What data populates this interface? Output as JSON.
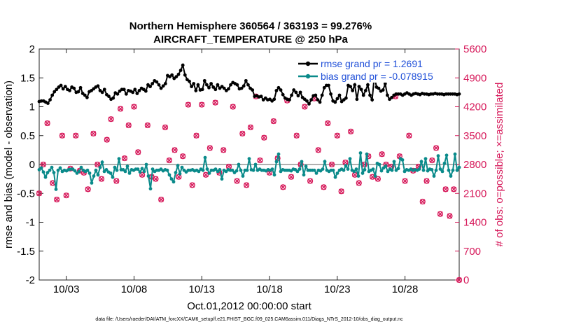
{
  "chart_data": {
    "type": "line",
    "title_line1": "Northern Hemisphere 360564 / 363193 = 99.276%",
    "title_line2": "AIRCRAFT_TEMPERATURE @ 250 hPa",
    "xlabel": "Oct.01,2012 00:00:00 start",
    "ylabel_left": "rmse and bias (model - observation)",
    "ylabel_right": "# of obs: o=possible; ×=assimilated",
    "footer": "data file: /Users/raeder/DAI/ATM_forcXX/CAM6_setup/f.e21.FHIST_BGC.f09_025.CAM6assim.011/Diags_NTrS_2012-10/obs_diag_output.nc",
    "x_range_days": [
      1.0,
      32.0
    ],
    "ylim_left": [
      -2,
      2
    ],
    "ylim_right": [
      0,
      5600
    ],
    "x_tick_days": [
      3,
      8,
      13,
      18,
      23,
      28
    ],
    "x_tick_labels": [
      "10/03",
      "10/08",
      "10/13",
      "10/18",
      "10/23",
      "10/28"
    ],
    "y_ticks_left": [
      "2",
      "1.5",
      "1",
      "0.5",
      "0",
      "-0.5",
      "-1",
      "-1.5",
      "-2"
    ],
    "y_ticks_right": [
      "5600",
      "4900",
      "4200",
      "3500",
      "2800",
      "2100",
      "1400",
      "700",
      "0"
    ],
    "legend": [
      {
        "name": "rmse grand pr = 1.2691",
        "color": "#000000"
      },
      {
        "name": "bias grand pr = -0.078915",
        "color": "#008080"
      }
    ],
    "colors": {
      "rmse": "#000000",
      "bias": "#0a8a8a",
      "obs": "#d6195a",
      "legend_text": "#1f4fd8",
      "zero_line": "#b0b0b0"
    },
    "series": [
      {
        "name": "rmse",
        "axis": "left",
        "values": [
          1.09,
          1.1,
          1.1,
          1.08,
          1.06,
          1.12,
          1.2,
          1.26,
          1.3,
          1.34,
          1.37,
          1.31,
          1.35,
          1.3,
          1.28,
          1.34,
          1.32,
          1.25,
          1.26,
          1.33,
          1.23,
          1.2,
          1.16,
          1.26,
          1.28,
          1.31,
          1.34,
          1.36,
          1.28,
          1.25,
          1.3,
          1.21,
          1.18,
          1.13,
          1.15,
          1.24,
          1.22,
          1.27,
          1.3,
          1.3,
          1.22,
          1.28,
          1.27,
          1.25,
          1.3,
          1.23,
          1.28,
          1.32,
          1.3,
          1.27,
          1.38,
          1.35,
          1.4,
          1.45,
          1.43,
          1.38,
          1.32,
          1.36,
          1.4,
          1.54,
          1.52,
          1.55,
          1.49,
          1.52,
          1.56,
          1.63,
          1.72,
          1.55,
          1.47,
          1.44,
          1.35,
          1.4,
          1.28,
          1.38,
          1.29,
          1.3,
          1.45,
          1.38,
          1.33,
          1.4,
          1.34,
          1.3,
          1.38,
          1.32,
          1.35,
          1.32,
          1.28,
          1.31,
          1.38,
          1.42,
          1.4,
          1.38,
          1.31,
          1.32,
          1.36,
          1.45,
          1.38,
          1.32,
          1.29,
          1.18,
          1.19,
          1.17,
          1.18,
          1.12,
          1.15,
          1.12,
          1.13,
          1.1,
          1.13,
          1.28,
          1.33,
          1.29,
          1.21,
          1.15,
          1.13,
          1.12,
          1.2,
          1.29,
          1.25,
          1.19,
          1.25,
          1.16,
          1.13,
          1.1,
          1.05,
          1.12,
          1.19,
          1.2,
          1.12,
          1.08,
          1.2,
          1.33,
          1.37,
          1.37,
          1.22,
          1.1,
          1.08,
          1.14,
          1.2,
          1.09,
          1.12,
          1.15,
          1.37,
          1.35,
          1.28,
          1.38,
          1.13,
          1.35,
          1.3,
          1.2,
          1.28,
          1.38,
          1.2,
          1.12,
          1.53,
          1.34,
          1.32,
          1.27,
          1.29,
          1.4,
          1.2,
          1.13,
          1.16,
          1.2,
          1.22,
          1.22,
          1.22,
          1.2,
          1.22,
          1.24,
          1.22,
          1.2,
          1.22,
          1.23,
          1.22,
          1.21,
          1.23,
          1.22,
          1.22,
          1.21,
          1.22,
          1.22,
          1.23,
          1.22,
          1.22,
          1.22,
          1.21,
          1.22,
          1.22,
          1.22,
          1.22,
          1.22,
          1.21,
          1.22
        ]
      },
      {
        "name": "bias",
        "axis": "left",
        "values": [
          -0.09,
          -0.06,
          -0.13,
          -0.22,
          -0.14,
          -0.1,
          -0.05,
          -0.14,
          -0.43,
          -0.1,
          -0.06,
          -0.12,
          -0.1,
          -0.11,
          -0.09,
          -0.08,
          -0.08,
          -0.11,
          -0.15,
          -0.12,
          -0.05,
          -0.1,
          -0.12,
          -0.1,
          -0.15,
          -0.32,
          -0.2,
          -0.1,
          -0.18,
          -0.05,
          0.04,
          -0.12,
          -0.09,
          -0.13,
          -0.15,
          -0.22,
          -0.05,
          -0.1,
          0.1,
          -0.09,
          -0.09,
          -0.12,
          -0.03,
          -0.15,
          -0.09,
          -0.1,
          -0.08,
          -0.08,
          -0.13,
          -0.07,
          -0.12,
          0.0,
          -0.2,
          -0.42,
          -0.08,
          -0.12,
          -0.1,
          -0.1,
          -0.08,
          -0.11,
          -0.09,
          -0.1,
          -0.18,
          -0.25,
          -0.3,
          -0.14,
          -0.02,
          -0.16,
          -0.05,
          -0.1,
          -0.13,
          -0.1,
          -0.1,
          -0.09,
          -0.11,
          -0.1,
          -0.12,
          -0.08,
          -0.1,
          0.12,
          -0.08,
          -0.15,
          -0.1,
          -0.1,
          -0.08,
          -0.12,
          -0.09,
          -0.25,
          -0.1,
          -0.12,
          -0.09,
          -0.1,
          -0.1,
          -0.14,
          -0.11,
          0.0,
          -0.1,
          -0.2,
          -0.1,
          -0.1,
          0.1,
          -0.09,
          -0.1,
          0.0,
          -0.1,
          -0.08,
          -0.1,
          -0.1,
          -0.11,
          -0.09,
          -0.1,
          -0.08,
          -0.18,
          0.05,
          0.18,
          -0.12,
          -0.09,
          -0.1,
          -0.1,
          -0.1,
          -0.11,
          -0.08,
          -0.09,
          -0.12,
          -0.08,
          0.05,
          -0.18,
          -0.03,
          -0.1,
          -0.1,
          -0.1,
          -0.1,
          -0.15,
          -0.1,
          -0.11,
          -0.08,
          0.05,
          -0.1,
          -0.12,
          -0.1,
          -0.1,
          -0.22,
          -0.15,
          -0.1,
          -0.08,
          -0.1,
          -0.02,
          -0.08,
          0.1,
          -0.1,
          -0.12,
          -0.08,
          -0.2,
          0.2,
          -0.15,
          -0.09,
          0.18,
          -0.12,
          -0.1,
          -0.08,
          -0.2,
          0.02,
          0.0,
          -0.11,
          -0.06,
          -0.03,
          -0.12,
          -0.08,
          -0.1,
          0.05,
          -0.1,
          -0.07,
          0.1,
          0.08,
          -0.12,
          -0.09,
          -0.1,
          -0.08,
          -0.1,
          -0.09,
          -0.1,
          -0.08,
          0.05,
          -0.1,
          0.1,
          -0.11,
          -0.08,
          -0.09,
          -0.2,
          -0.1,
          0.15,
          -0.08,
          -0.12,
          0.02,
          0.16,
          -0.1,
          -0.2,
          -0.1,
          0.18,
          -0.1,
          -0.05
        ]
      },
      {
        "name": "obs",
        "axis": "right",
        "note": "possible (o) and assimilated (×) counts nearly coincide",
        "points": [
          [
            1.0,
            2100
          ],
          [
            1.3,
            2800
          ],
          [
            1.6,
            3800
          ],
          [
            2.0,
            2350
          ],
          [
            2.3,
            1950
          ],
          [
            2.7,
            3500
          ],
          [
            3.0,
            2050
          ],
          [
            3.3,
            2700
          ],
          [
            3.7,
            3500
          ],
          [
            4.0,
            2650
          ],
          [
            4.3,
            2600
          ],
          [
            4.6,
            2200
          ],
          [
            5.0,
            3550
          ],
          [
            5.3,
            2800
          ],
          [
            5.6,
            2450
          ],
          [
            6.0,
            3400
          ],
          [
            6.3,
            3900
          ],
          [
            6.7,
            2400
          ],
          [
            7.0,
            4150
          ],
          [
            7.3,
            2950
          ],
          [
            7.6,
            3750
          ],
          [
            8.0,
            4200
          ],
          [
            8.3,
            3100
          ],
          [
            8.6,
            2550
          ],
          [
            9.0,
            3750
          ],
          [
            9.3,
            2500
          ],
          [
            9.6,
            2450
          ],
          [
            10.0,
            1950
          ],
          [
            10.3,
            3700
          ],
          [
            10.6,
            2900
          ],
          [
            11.0,
            3150
          ],
          [
            11.3,
            2500
          ],
          [
            11.6,
            3000
          ],
          [
            12.0,
            4250
          ],
          [
            12.3,
            2300
          ],
          [
            12.6,
            3500
          ],
          [
            13.0,
            4250
          ],
          [
            13.3,
            2550
          ],
          [
            13.6,
            3200
          ],
          [
            14.0,
            4300
          ],
          [
            14.3,
            2600
          ],
          [
            14.6,
            3150
          ],
          [
            15.0,
            2750
          ],
          [
            15.3,
            4200
          ],
          [
            15.6,
            2400
          ],
          [
            16.0,
            3550
          ],
          [
            16.3,
            2300
          ],
          [
            16.6,
            3700
          ],
          [
            17.0,
            4450
          ],
          [
            17.3,
            2900
          ],
          [
            17.6,
            3450
          ],
          [
            18.0,
            2600
          ],
          [
            18.3,
            3850
          ],
          [
            18.6,
            2950
          ],
          [
            19.0,
            2250
          ],
          [
            19.3,
            4350
          ],
          [
            19.6,
            2500
          ],
          [
            20.0,
            3500
          ],
          [
            20.3,
            2800
          ],
          [
            20.6,
            4200
          ],
          [
            21.0,
            2400
          ],
          [
            21.3,
            4400
          ],
          [
            21.6,
            3150
          ],
          [
            22.0,
            2250
          ],
          [
            22.3,
            3800
          ],
          [
            22.6,
            2800
          ],
          [
            23.0,
            3500
          ],
          [
            23.3,
            2150
          ],
          [
            23.6,
            2850
          ],
          [
            24.0,
            3600
          ],
          [
            24.3,
            2550
          ],
          [
            24.6,
            2350
          ],
          [
            25.0,
            2800
          ],
          [
            25.3,
            3000
          ],
          [
            25.6,
            2500
          ],
          [
            26.0,
            2450
          ],
          [
            26.3,
            3050
          ],
          [
            26.6,
            2800
          ],
          [
            27.0,
            2750
          ],
          [
            27.3,
            4450
          ],
          [
            27.6,
            3000
          ],
          [
            28.0,
            2400
          ],
          [
            28.3,
            3500
          ],
          [
            28.6,
            2650
          ],
          [
            29.0,
            2750
          ],
          [
            29.3,
            1900
          ],
          [
            29.6,
            2400
          ],
          [
            30.0,
            2900
          ],
          [
            30.3,
            3200
          ],
          [
            30.6,
            1600
          ],
          [
            31.0,
            2200
          ],
          [
            31.3,
            1550
          ],
          [
            31.6,
            2200
          ],
          [
            32.0,
            0
          ]
        ]
      }
    ]
  }
}
